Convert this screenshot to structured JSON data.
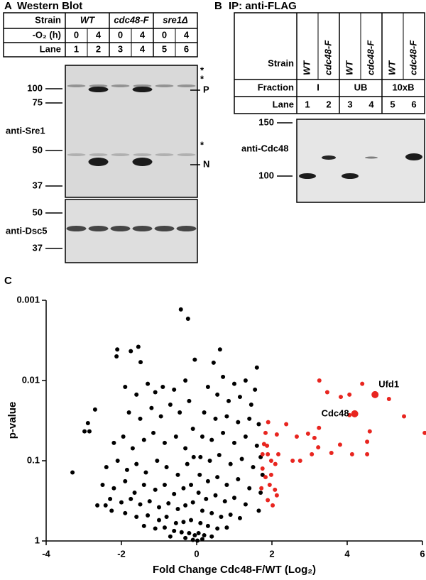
{
  "panel_a": {
    "label": "A",
    "title": "Western Blot",
    "strain_header": "Strain",
    "strains": [
      "WT",
      "cdc48-F",
      "sre1Δ"
    ],
    "o2_header": "-O₂ (h)",
    "o2_values": [
      "0",
      "4",
      "0",
      "4",
      "0",
      "4"
    ],
    "lane_header": "Lane",
    "lanes": [
      "1",
      "2",
      "3",
      "4",
      "5",
      "6"
    ],
    "markers_top": [
      "100",
      "75",
      "50",
      "37"
    ],
    "markers_bottom": [
      "50",
      "37"
    ],
    "antibodies": [
      "anti-Sre1",
      "anti-Dsc5"
    ],
    "band_labels": [
      "*",
      "*",
      "P",
      "*",
      "N"
    ]
  },
  "panel_b": {
    "label": "B",
    "title": "IP: anti-FLAG",
    "strain_header": "Strain",
    "strains": [
      "WT",
      "cdc48-F",
      "WT",
      "cdc48-F",
      "WT",
      "cdc48-F"
    ],
    "fraction_header": "Fraction",
    "fractions": [
      "I",
      "UB",
      "10xB"
    ],
    "lane_header": "Lane",
    "lanes": [
      "1",
      "2",
      "3",
      "4",
      "5",
      "6"
    ],
    "markers": [
      "150",
      "100"
    ],
    "antibody": "anti-Cdc48"
  },
  "panel_c_label": "C",
  "chart_data": {
    "type": "scatter",
    "xlabel": "Fold Change Cdc48-F/WT (Log₂)",
    "ylabel": "p-value",
    "xlim": [
      -4,
      6
    ],
    "xticks": [
      -4,
      -2,
      0,
      2,
      4,
      6
    ],
    "ylim": [
      1,
      0.001
    ],
    "yticks": [
      1,
      0.1,
      0.01,
      0.001
    ],
    "yscale": "log",
    "series": [
      {
        "color": "#000000",
        "x": [
          -0.42,
          -0.23,
          -1.55,
          -1.75,
          -2.11,
          -2.13,
          -1.49,
          -2.7,
          -2.89,
          -2.98,
          -2.85,
          -3.3,
          -2.64,
          -2.42,
          -2.26,
          -1.9,
          -1.6,
          -1.3,
          -1.1,
          -0.9,
          -0.6,
          -0.3,
          -0.05,
          -1.8,
          -1.5,
          -1.2,
          -0.95,
          -0.7,
          -0.45,
          -0.2,
          -2.2,
          -1.95,
          -1.7,
          -1.4,
          -1.15,
          -0.85,
          -0.55,
          -0.3,
          -0.1,
          -2.4,
          -2.1,
          -1.85,
          -1.6,
          -1.35,
          -1.05,
          -0.8,
          -0.5,
          -0.25,
          -0.08,
          -2.5,
          -2.2,
          -1.9,
          -1.65,
          -1.4,
          -1.1,
          -0.85,
          -0.6,
          -0.35,
          -0.15,
          -2.3,
          -2.0,
          -1.75,
          -1.5,
          -1.25,
          -1.0,
          -0.75,
          -0.5,
          -0.3,
          -0.1,
          -1.9,
          -1.6,
          -1.3,
          -1.0,
          -0.8,
          -0.55,
          -0.35,
          -0.15,
          -1.4,
          -1.1,
          -0.85,
          -0.6,
          -0.4,
          -0.2,
          -0.05,
          -0.7,
          -0.3,
          -0.1,
          0.62,
          1.6,
          0.45,
          0.7,
          1.0,
          1.3,
          1.55,
          0.3,
          0.55,
          0.85,
          1.15,
          1.45,
          0.2,
          0.5,
          0.8,
          1.1,
          1.4,
          1.65,
          0.15,
          0.4,
          0.7,
          1.0,
          1.3,
          1.6,
          0.1,
          0.35,
          0.6,
          0.9,
          1.2,
          1.5,
          0.08,
          0.3,
          0.55,
          0.8,
          1.1,
          1.4,
          0.05,
          0.25,
          0.5,
          0.75,
          1.0,
          1.3,
          0.15,
          0.4,
          0.65,
          0.9,
          1.15,
          0.1,
          0.3,
          0.55,
          0.8,
          0.05,
          0.2,
          0.4,
          0.15,
          0.02,
          1.7,
          1.75,
          1.7,
          1.65
        ],
        "values": [
          0.0013,
          0.0017,
          0.0038,
          0.0043,
          0.0041,
          0.005,
          0.0059,
          0.023,
          0.034,
          0.043,
          0.043,
          0.14,
          0.36,
          0.36,
          0.42,
          0.012,
          0.015,
          0.011,
          0.014,
          0.012,
          0.013,
          0.01,
          0.0055,
          0.025,
          0.03,
          0.022,
          0.028,
          0.02,
          0.025,
          0.018,
          0.06,
          0.05,
          0.07,
          0.055,
          0.045,
          0.06,
          0.05,
          0.07,
          0.04,
          0.12,
          0.1,
          0.13,
          0.11,
          0.14,
          0.1,
          0.12,
          0.15,
          0.11,
          0.09,
          0.2,
          0.22,
          0.18,
          0.25,
          0.2,
          0.23,
          0.2,
          0.26,
          0.22,
          0.2,
          0.3,
          0.33,
          0.3,
          0.35,
          0.32,
          0.38,
          0.34,
          0.4,
          0.36,
          0.33,
          0.45,
          0.5,
          0.48,
          0.55,
          0.5,
          0.6,
          0.58,
          0.55,
          0.65,
          0.7,
          0.68,
          0.75,
          0.78,
          0.8,
          0.85,
          0.88,
          0.92,
          0.97,
          0.0041,
          0.0069,
          0.006,
          0.009,
          0.011,
          0.01,
          0.013,
          0.012,
          0.015,
          0.018,
          0.016,
          0.02,
          0.025,
          0.03,
          0.028,
          0.033,
          0.03,
          0.035,
          0.05,
          0.055,
          0.045,
          0.06,
          0.05,
          0.065,
          0.09,
          0.1,
          0.085,
          0.11,
          0.095,
          0.12,
          0.15,
          0.18,
          0.16,
          0.2,
          0.17,
          0.22,
          0.25,
          0.3,
          0.27,
          0.32,
          0.29,
          0.35,
          0.42,
          0.45,
          0.5,
          0.47,
          0.52,
          0.6,
          0.65,
          0.7,
          0.68,
          0.8,
          0.85,
          0.88,
          0.95,
          0.99,
          0.09,
          0.15,
          0.25,
          0.42
        ]
      },
      {
        "color": "#e8251f",
        "x": [
          3.26,
          3.47,
          3.83,
          4.06,
          4.4,
          5.11,
          5.51,
          6.06,
          4.6,
          4.53,
          4.53,
          4.06,
          3.25,
          2.38,
          2.66,
          3.23,
          3.06,
          3.58,
          4.13,
          3.81,
          2.96,
          2.13,
          2.17,
          2.55,
          2.75,
          3.13,
          1.9,
          1.83,
          1.79,
          1.89,
          1.98,
          1.75,
          1.83,
          1.94,
          2.08,
          1.89,
          2.02,
          2.13,
          1.72,
          1.98,
          2.09,
          1.75,
          1.87
        ],
        "values": [
          0.01,
          0.014,
          0.016,
          0.015,
          0.011,
          0.017,
          0.028,
          0.045,
          0.043,
          0.058,
          0.083,
          0.027,
          0.039,
          0.035,
          0.05,
          0.068,
          0.083,
          0.08,
          0.083,
          0.063,
          0.046,
          0.047,
          0.083,
          0.1,
          0.1,
          0.052,
          0.033,
          0.045,
          0.062,
          0.083,
          0.1,
          0.125,
          0.16,
          0.2,
          0.23,
          0.31,
          0.36,
          0.27,
          0.22,
          0.15,
          0.11,
          0.083,
          0.065
        ]
      }
    ],
    "annotations": [
      {
        "text": "Ufd1",
        "x": 4.74,
        "y": 0.015
      },
      {
        "text": "Cdc48",
        "x": 4.2,
        "y": 0.026
      }
    ]
  }
}
